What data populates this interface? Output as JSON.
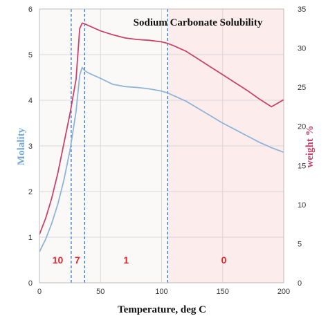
{
  "chart_data": {
    "type": "line",
    "title": "Sodium Carbonate Solubility",
    "xlabel": "Temperature, deg C",
    "ylabel_left": "Molality",
    "ylabel_right": "weight %",
    "xlim": [
      0,
      200
    ],
    "ylim_left": [
      0,
      6
    ],
    "ylim_right": [
      0,
      35
    ],
    "x_ticks": [
      "0",
      "50",
      "100",
      "150",
      "200"
    ],
    "y_left_ticks": [
      "0",
      "1",
      "2",
      "3",
      "4",
      "5",
      "6"
    ],
    "y_right_ticks": [
      "0",
      "5",
      "10",
      "15",
      "20",
      "25",
      "30",
      "35"
    ],
    "grid": true,
    "vlines": [
      26,
      37,
      105
    ],
    "regions": [
      {
        "label": "10",
        "x": 15,
        "y_left": 0.5
      },
      {
        "label": "7",
        "x": 31,
        "y_left": 0.5
      },
      {
        "label": "1",
        "x": 71,
        "y_left": 0.5
      },
      {
        "label": "0",
        "x": 151,
        "y_left": 0.5
      }
    ],
    "shaded_ranges": [
      [
        0,
        105
      ],
      [
        105,
        200
      ]
    ],
    "series": [
      {
        "axis": "left",
        "color": "#8fb4d8",
        "x": [
          0,
          5,
          10,
          15,
          20,
          25,
          30,
          33,
          35,
          37,
          40,
          50,
          60,
          70,
          80,
          90,
          100,
          105,
          110,
          120,
          130,
          140,
          150,
          160,
          170,
          180,
          190,
          200
        ],
        "y": [
          0.68,
          0.95,
          1.3,
          1.72,
          2.25,
          2.9,
          3.75,
          4.55,
          4.72,
          4.65,
          4.6,
          4.48,
          4.35,
          4.3,
          4.28,
          4.25,
          4.2,
          4.16,
          4.1,
          3.98,
          3.82,
          3.66,
          3.5,
          3.36,
          3.22,
          3.08,
          2.96,
          2.86
        ]
      },
      {
        "axis": "right",
        "color": "#c8436a",
        "x": [
          0,
          5,
          10,
          15,
          20,
          25,
          30,
          33,
          35,
          37,
          40,
          50,
          60,
          70,
          80,
          90,
          100,
          105,
          110,
          120,
          130,
          140,
          150,
          160,
          170,
          180,
          190,
          200
        ],
        "y": [
          6.2,
          8.2,
          10.8,
          14.0,
          17.8,
          21.6,
          26.0,
          32.5,
          33.2,
          33.1,
          32.9,
          32.2,
          31.7,
          31.3,
          31.1,
          31.0,
          30.8,
          30.6,
          30.3,
          29.6,
          28.6,
          27.6,
          26.6,
          25.6,
          24.6,
          23.5,
          22.5,
          23.4
        ]
      }
    ]
  },
  "colors": {
    "molality": "#8fb4d8",
    "weight": "#c8436a",
    "region_text": "#e4242a",
    "shade_left": "#fbf8f8",
    "shade_right": "#fdecec",
    "vline": "#3b6fc2",
    "grid": "#d8d8d8"
  }
}
